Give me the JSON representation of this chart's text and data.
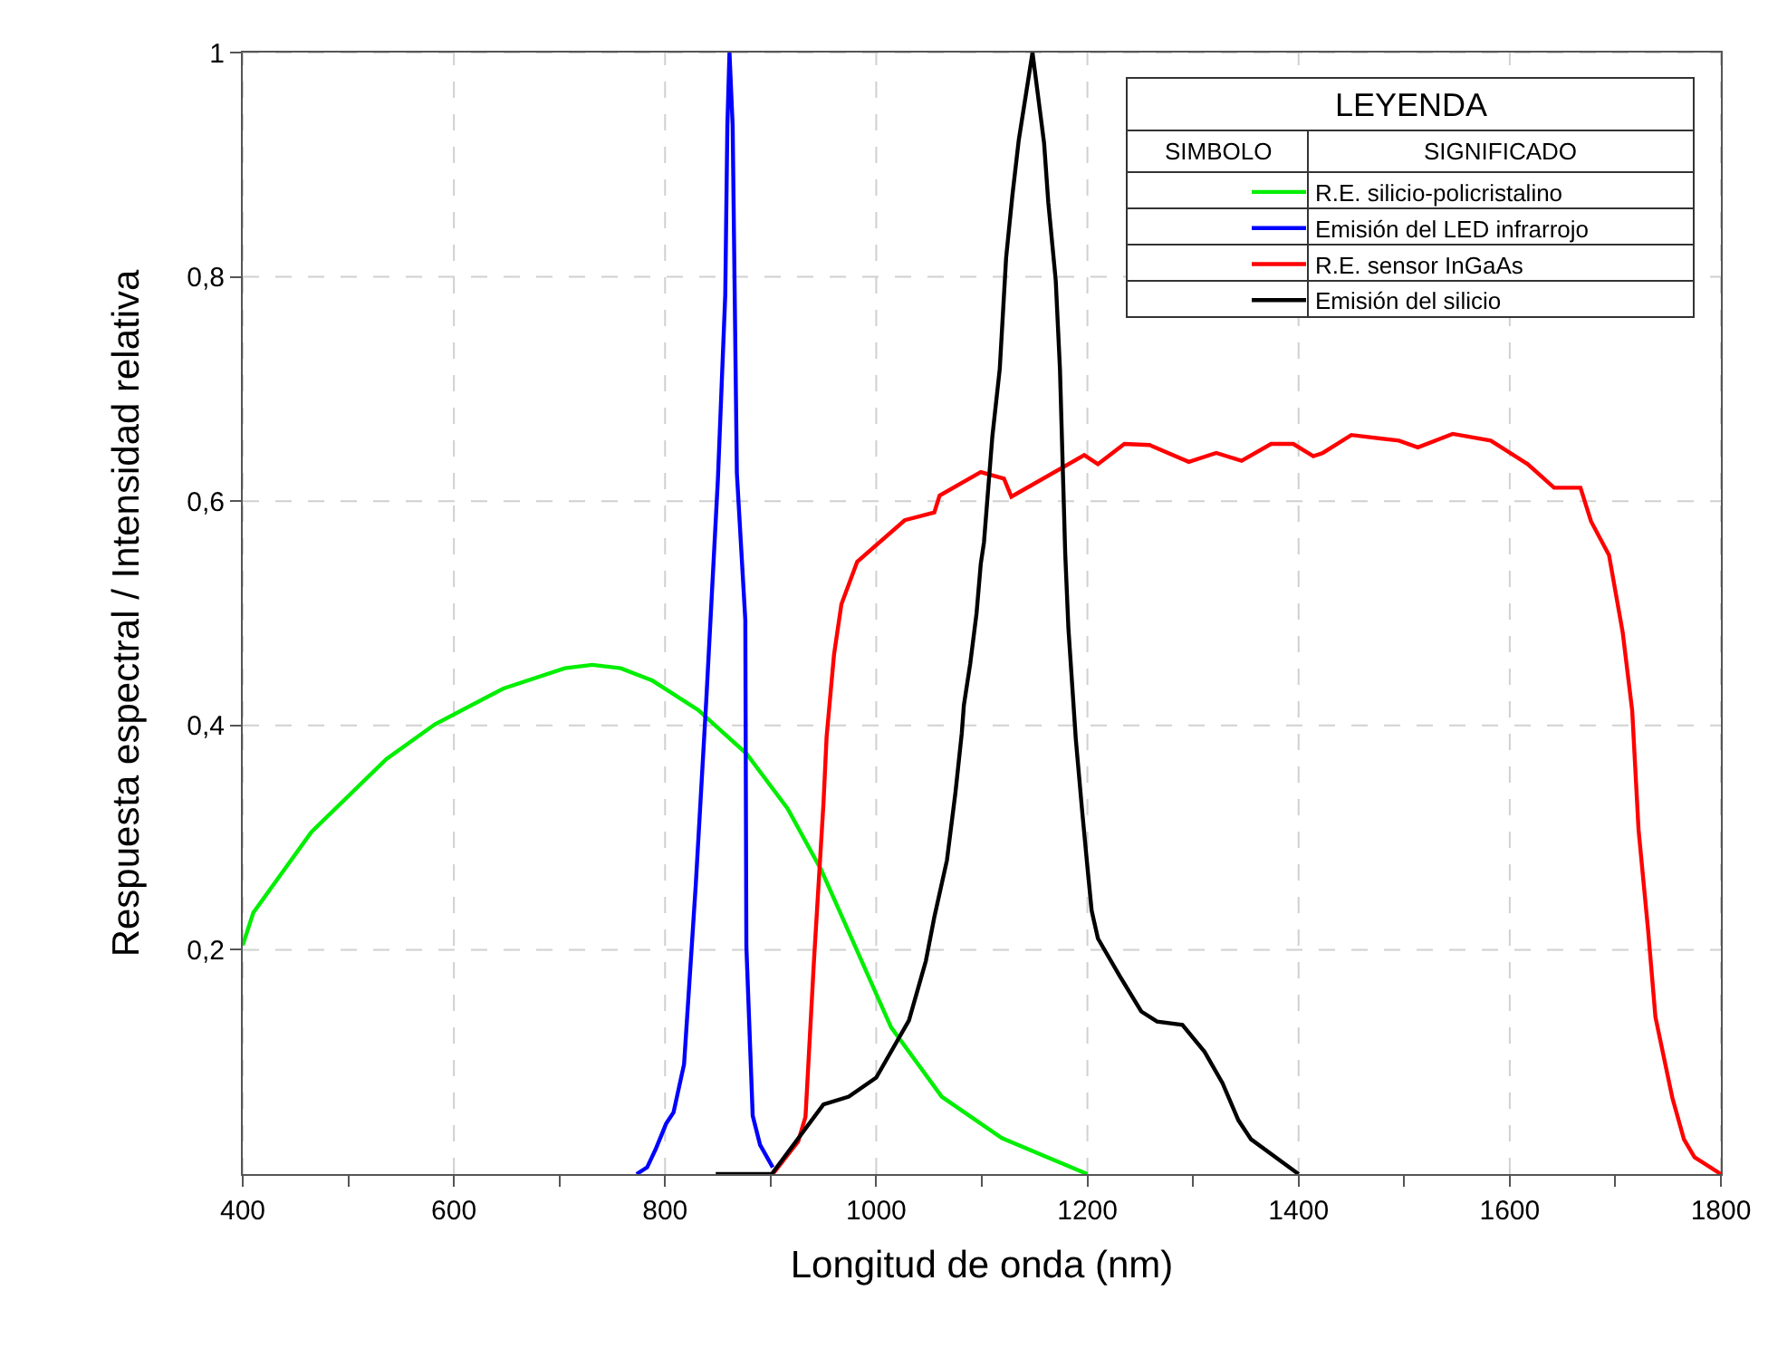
{
  "chart_data": {
    "type": "line",
    "xlabel": "Longitud de onda (nm)",
    "ylabel": "Respuesta espectral / Intensidad relativa",
    "legend_title": "LEYENDA",
    "annotations": [
      "SIMBOLO",
      "SIGNIFICADO"
    ],
    "xlim": [
      400,
      1800
    ],
    "ylim": [
      0,
      1
    ],
    "xticks": [
      400,
      {
        "value": 500,
        "label": null
      },
      600,
      {
        "value": 700,
        "label": null
      },
      800,
      {
        "value": 900,
        "label": null
      },
      1000,
      {
        "value": 1100,
        "label": null
      },
      1200,
      {
        "value": 1300,
        "label": null
      },
      1400,
      {
        "value": 1500,
        "label": null
      },
      1600,
      {
        "value": 1700,
        "label": null
      },
      1800
    ],
    "yticks": [
      {
        "value": 0.2,
        "label": "0,2"
      },
      {
        "value": 0.4,
        "label": "0,4"
      },
      {
        "value": 0.6,
        "label": "0,6"
      },
      {
        "value": 0.8,
        "label": "0,8"
      },
      1
    ],
    "grid": true,
    "legend": "top right",
    "marker": "none",
    "line_style": "solid",
    "series": [
      {
        "name": "R.E. silicio-policristalino",
        "color": "#00ee00",
        "x": [
          400,
          410,
          465,
          536,
          582,
          647,
          705,
          731,
          758,
          788,
          831,
          877,
          916,
          948,
          1014,
          1062,
          1119,
          1200
        ],
        "values": [
          0.204,
          0.233,
          0.305,
          0.37,
          0.401,
          0.433,
          0.451,
          0.454,
          0.451,
          0.44,
          0.414,
          0.375,
          0.326,
          0.271,
          0.131,
          0.069,
          0.032,
          0
        ]
      },
      {
        "name": "Emisión del LED infrarrojo",
        "color": "#0000ff",
        "x": [
          773,
          783,
          791,
          801,
          808,
          818,
          829,
          839,
          850,
          857,
          859,
          861,
          864,
          868,
          876,
          877,
          883,
          890,
          902
        ],
        "values": [
          0,
          0.006,
          0.022,
          0.045,
          0.055,
          0.098,
          0.257,
          0.422,
          0.619,
          0.784,
          0.935,
          1,
          0.935,
          0.625,
          0.494,
          0.203,
          0.052,
          0.026,
          0.006
        ]
      },
      {
        "name": "R.E. sensor InGaAs",
        "color": "#ff0000",
        "x": [
          902,
          926,
          933,
          941,
          950,
          953,
          960,
          967,
          982,
          1027,
          1055,
          1060,
          1099,
          1121,
          1128,
          1197,
          1210,
          1235,
          1259,
          1296,
          1322,
          1346,
          1374,
          1395,
          1414,
          1423,
          1450,
          1495,
          1513,
          1546,
          1582,
          1617,
          1642,
          1667,
          1677,
          1694,
          1707,
          1716,
          1722,
          1731,
          1738,
          1754,
          1765,
          1775,
          1800
        ],
        "values": [
          0,
          0.029,
          0.051,
          0.19,
          0.33,
          0.39,
          0.463,
          0.508,
          0.546,
          0.583,
          0.59,
          0.605,
          0.626,
          0.62,
          0.604,
          0.641,
          0.633,
          0.651,
          0.65,
          0.635,
          0.643,
          0.636,
          0.651,
          0.651,
          0.64,
          0.643,
          0.659,
          0.654,
          0.648,
          0.66,
          0.654,
          0.633,
          0.612,
          0.612,
          0.582,
          0.552,
          0.483,
          0.413,
          0.307,
          0.218,
          0.14,
          0.068,
          0.031,
          0.015,
          0
        ]
      },
      {
        "name": "Emisión del silicio",
        "color": "#000000",
        "x": [
          848,
          901,
          950,
          974,
          1000,
          1031,
          1047,
          1055,
          1067,
          1075,
          1081,
          1083,
          1089,
          1095,
          1099,
          1102,
          1110,
          1117,
          1123,
          1129,
          1135,
          1148,
          1159,
          1163,
          1170,
          1174,
          1177,
          1179,
          1182,
          1189,
          1195,
          1200,
          1204,
          1210,
          1231,
          1251,
          1266,
          1290,
          1311,
          1328,
          1343,
          1355,
          1400
        ],
        "values": [
          0,
          0,
          0.062,
          0.069,
          0.086,
          0.137,
          0.19,
          0.229,
          0.28,
          0.34,
          0.393,
          0.418,
          0.455,
          0.5,
          0.544,
          0.563,
          0.658,
          0.718,
          0.817,
          0.873,
          0.922,
          1,
          0.919,
          0.866,
          0.797,
          0.718,
          0.619,
          0.553,
          0.487,
          0.388,
          0.324,
          0.274,
          0.235,
          0.21,
          0.176,
          0.145,
          0.136,
          0.133,
          0.109,
          0.081,
          0.048,
          0.031,
          0
        ]
      }
    ]
  }
}
